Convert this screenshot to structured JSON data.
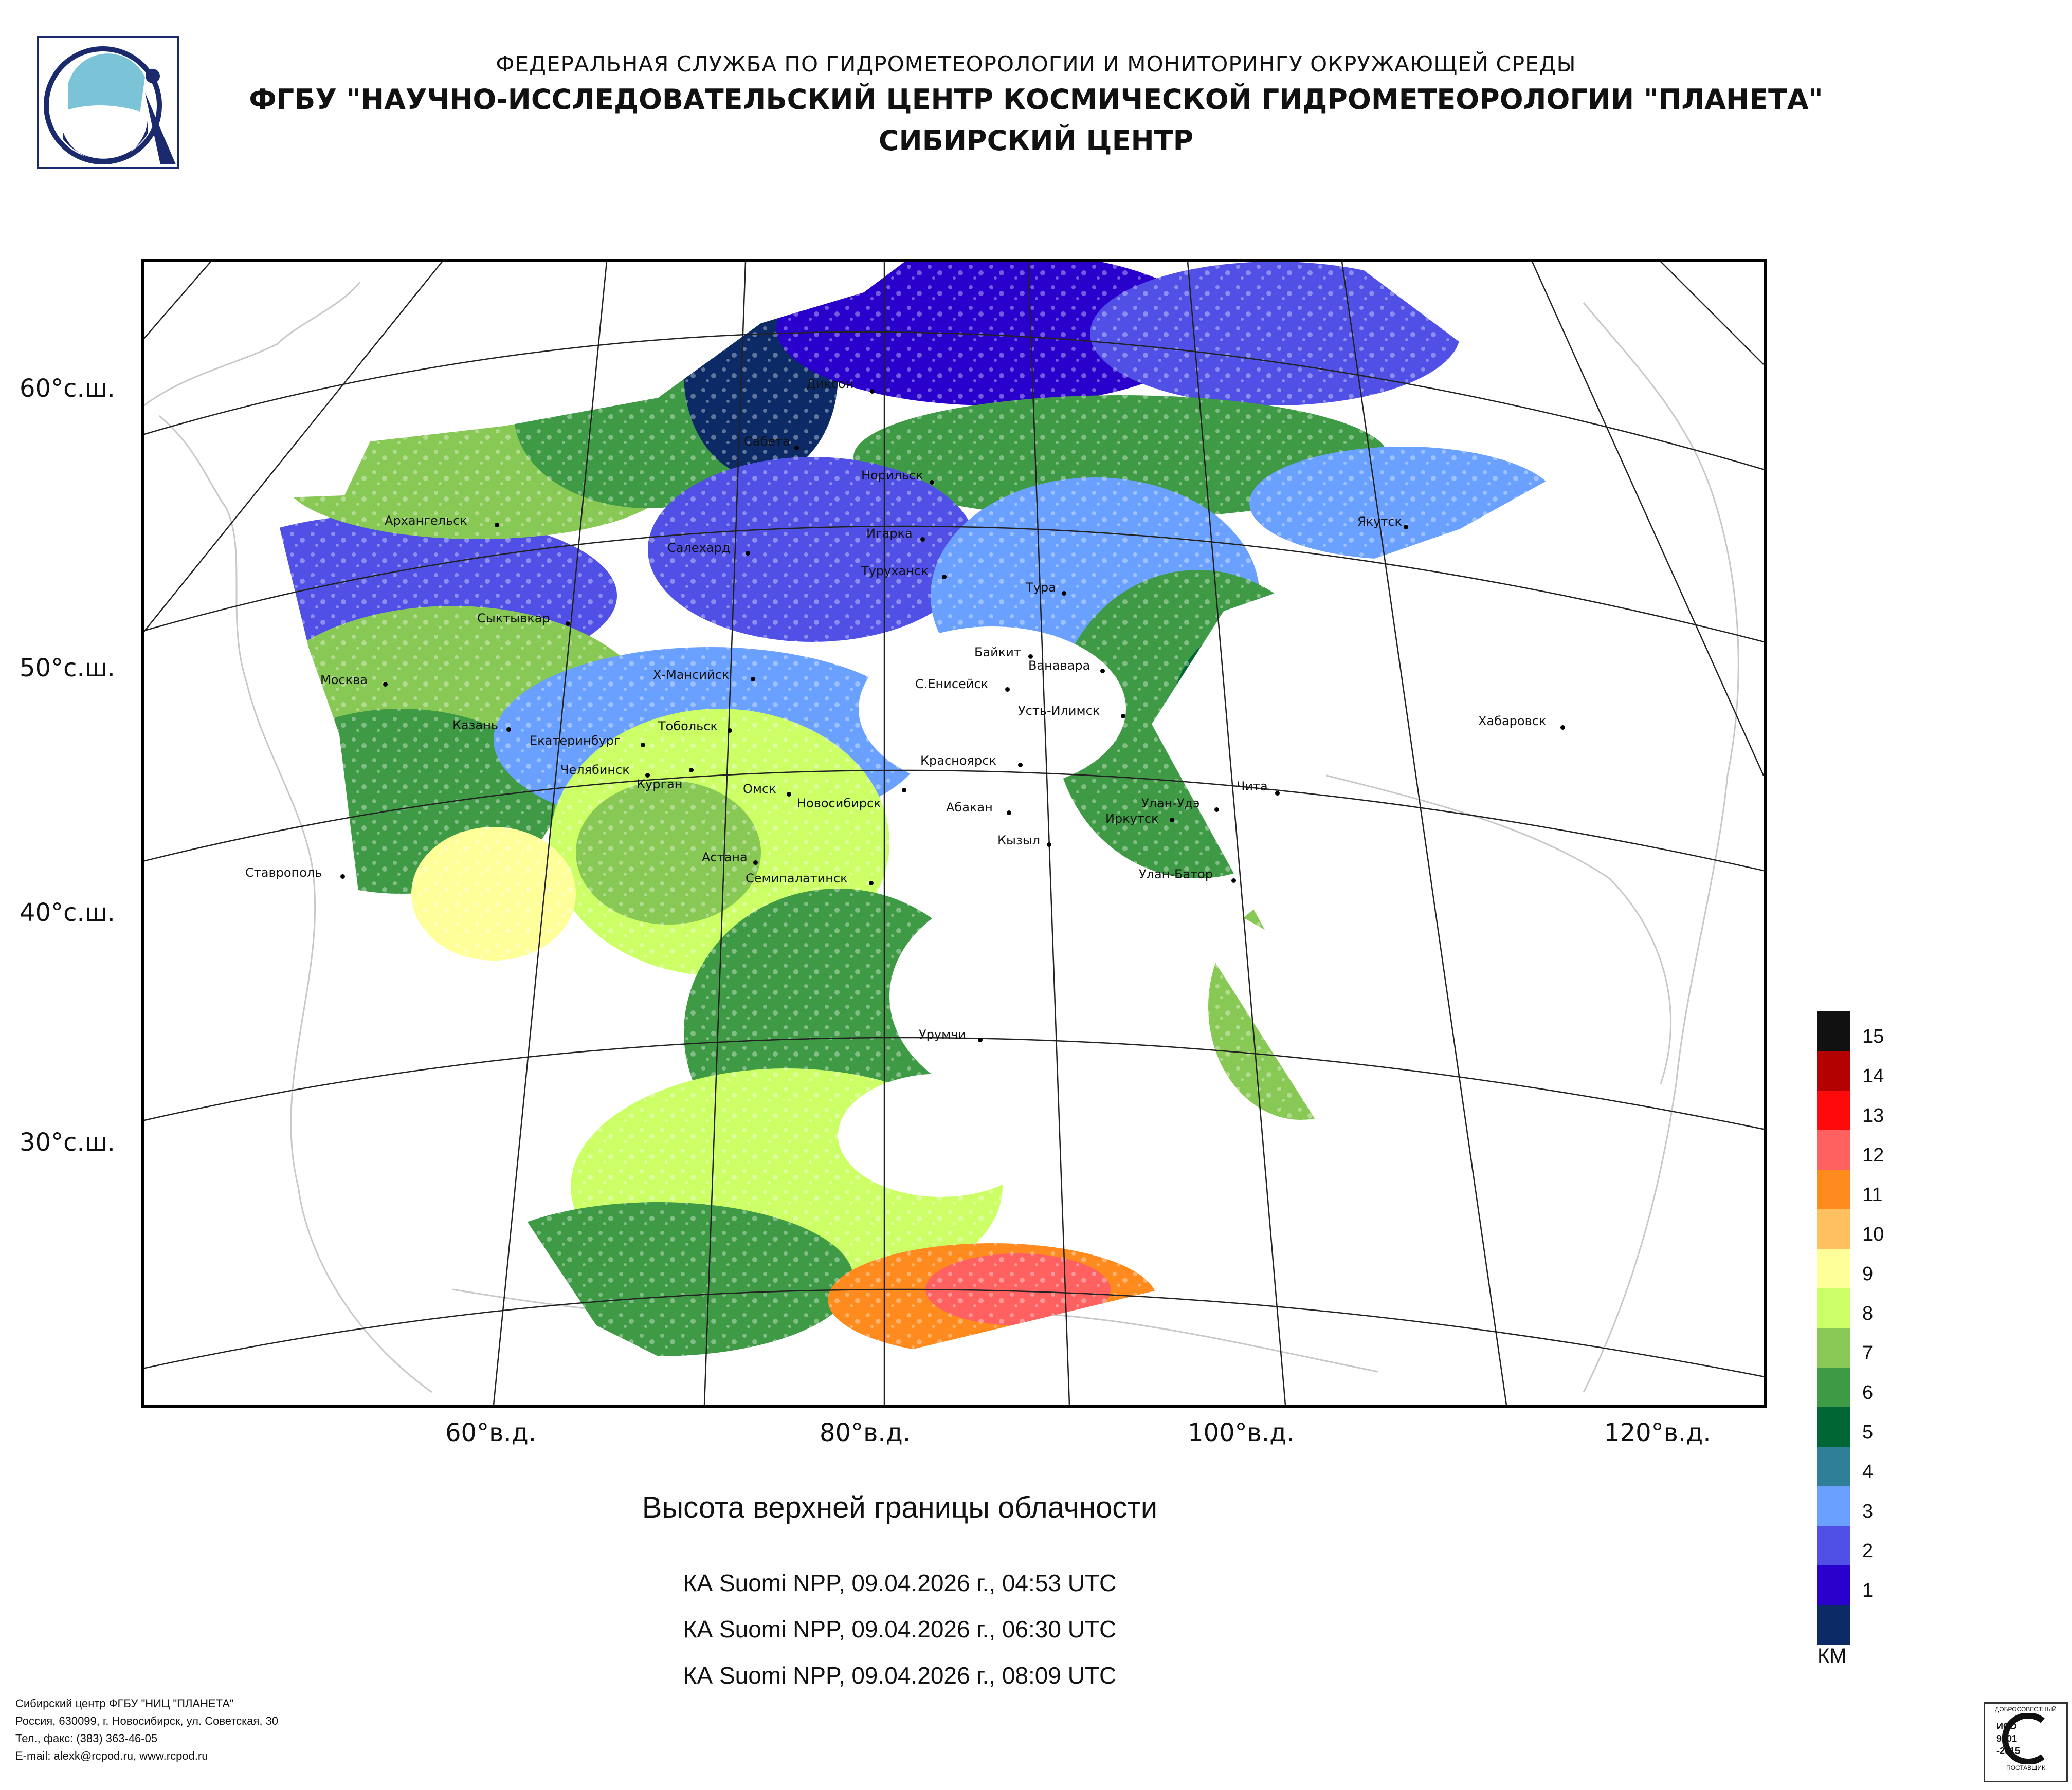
{
  "header": {
    "line1": "ФЕДЕРАЛЬНАЯ СЛУЖБА ПО ГИДРОМЕТЕОРОЛОГИИ И МОНИТОРИНГУ ОКРУЖАЮЩЕЙ СРЕДЫ",
    "line2": "ФГБУ \"НАУЧНО-ИССЛЕДОВАТЕЛЬСКИЙ ЦЕНТР КОСМИЧЕСКОЙ ГИДРОМЕТЕОРОЛОГИИ \"ПЛАНЕТА\"",
    "line3": "СИБИРСКИЙ ЦЕНТР"
  },
  "lat_labels": [
    "60°с.ш.",
    "50°с.ш.",
    "40°с.ш.",
    "30°с.ш."
  ],
  "lon_labels": [
    "60°в.д.",
    "80°в.д.",
    "100°в.д.",
    "120°в.д."
  ],
  "cities": [
    "Диксон",
    "Сабета",
    "Норильск",
    "Архангельск",
    "Салехард",
    "Игарка",
    "Туруханск",
    "Якутск",
    "Тура",
    "Сыктывкар",
    "Байкит",
    "Ванавара",
    "Москва",
    "Х-Мансийск",
    "С.Енисейск",
    "Усть-Илимск",
    "Хабаровск",
    "Казань",
    "Тобольск",
    "Екатеринбург",
    "Челябинск",
    "Курган",
    "Красноярск",
    "Чита",
    "Омск",
    "Новосибирск",
    "Абакан",
    "Улан-Удэ",
    "Иркутск",
    "Кызыл",
    "Астана",
    "Ставрополь",
    "Семипалатинск",
    "Улан-Батор",
    "Урумчи"
  ],
  "title": "Высота верхней границы облачности",
  "passes": [
    "КА Suomi NPP, 09.04.2026 г., 04:53 UTC",
    "КА Suomi NPP, 09.04.2026 г., 06:30 UTC",
    "КА Suomi NPP, 09.04.2026 г., 08:09 UTC"
  ],
  "legend": {
    "unit": "КМ",
    "levels": [
      {
        "label": "15",
        "color": "#111111"
      },
      {
        "label": "14",
        "color": "#b30000"
      },
      {
        "label": "13",
        "color": "#ff0a0a"
      },
      {
        "label": "12",
        "color": "#ff6060"
      },
      {
        "label": "11",
        "color": "#ff8a1e"
      },
      {
        "label": "10",
        "color": "#ffc060"
      },
      {
        "label": "9",
        "color": "#ffff99"
      },
      {
        "label": "8",
        "color": "#ccff66"
      },
      {
        "label": "7",
        "color": "#88c855"
      },
      {
        "label": "6",
        "color": "#3f9a45"
      },
      {
        "label": "5",
        "color": "#006633"
      },
      {
        "label": "4",
        "color": "#2f7f99"
      },
      {
        "label": "3",
        "color": "#6aa0ff"
      },
      {
        "label": "2",
        "color": "#5050e6"
      },
      {
        "label": "1",
        "color": "#2a00cc"
      },
      {
        "label": "",
        "color": "#0b2a66"
      }
    ]
  },
  "footer": {
    "line1": "Сибирский центр ФГБУ \"НИЦ \"ПЛАНЕТА\"",
    "line2": "Россия, 630099, г. Новосибирск, ул. Советская, 30",
    "line3": "Тел., факс: (383) 363-46-05",
    "line4": "E-mail: alexk@rcpod.ru, www.rcpod.ru"
  },
  "cert": {
    "top": "ДОБРОСОВЕСТНЫЙ",
    "mid1": "ИСО",
    "mid2": "9001",
    "mid3": "-2015",
    "bottom": "ПОСТАВЩИК"
  }
}
